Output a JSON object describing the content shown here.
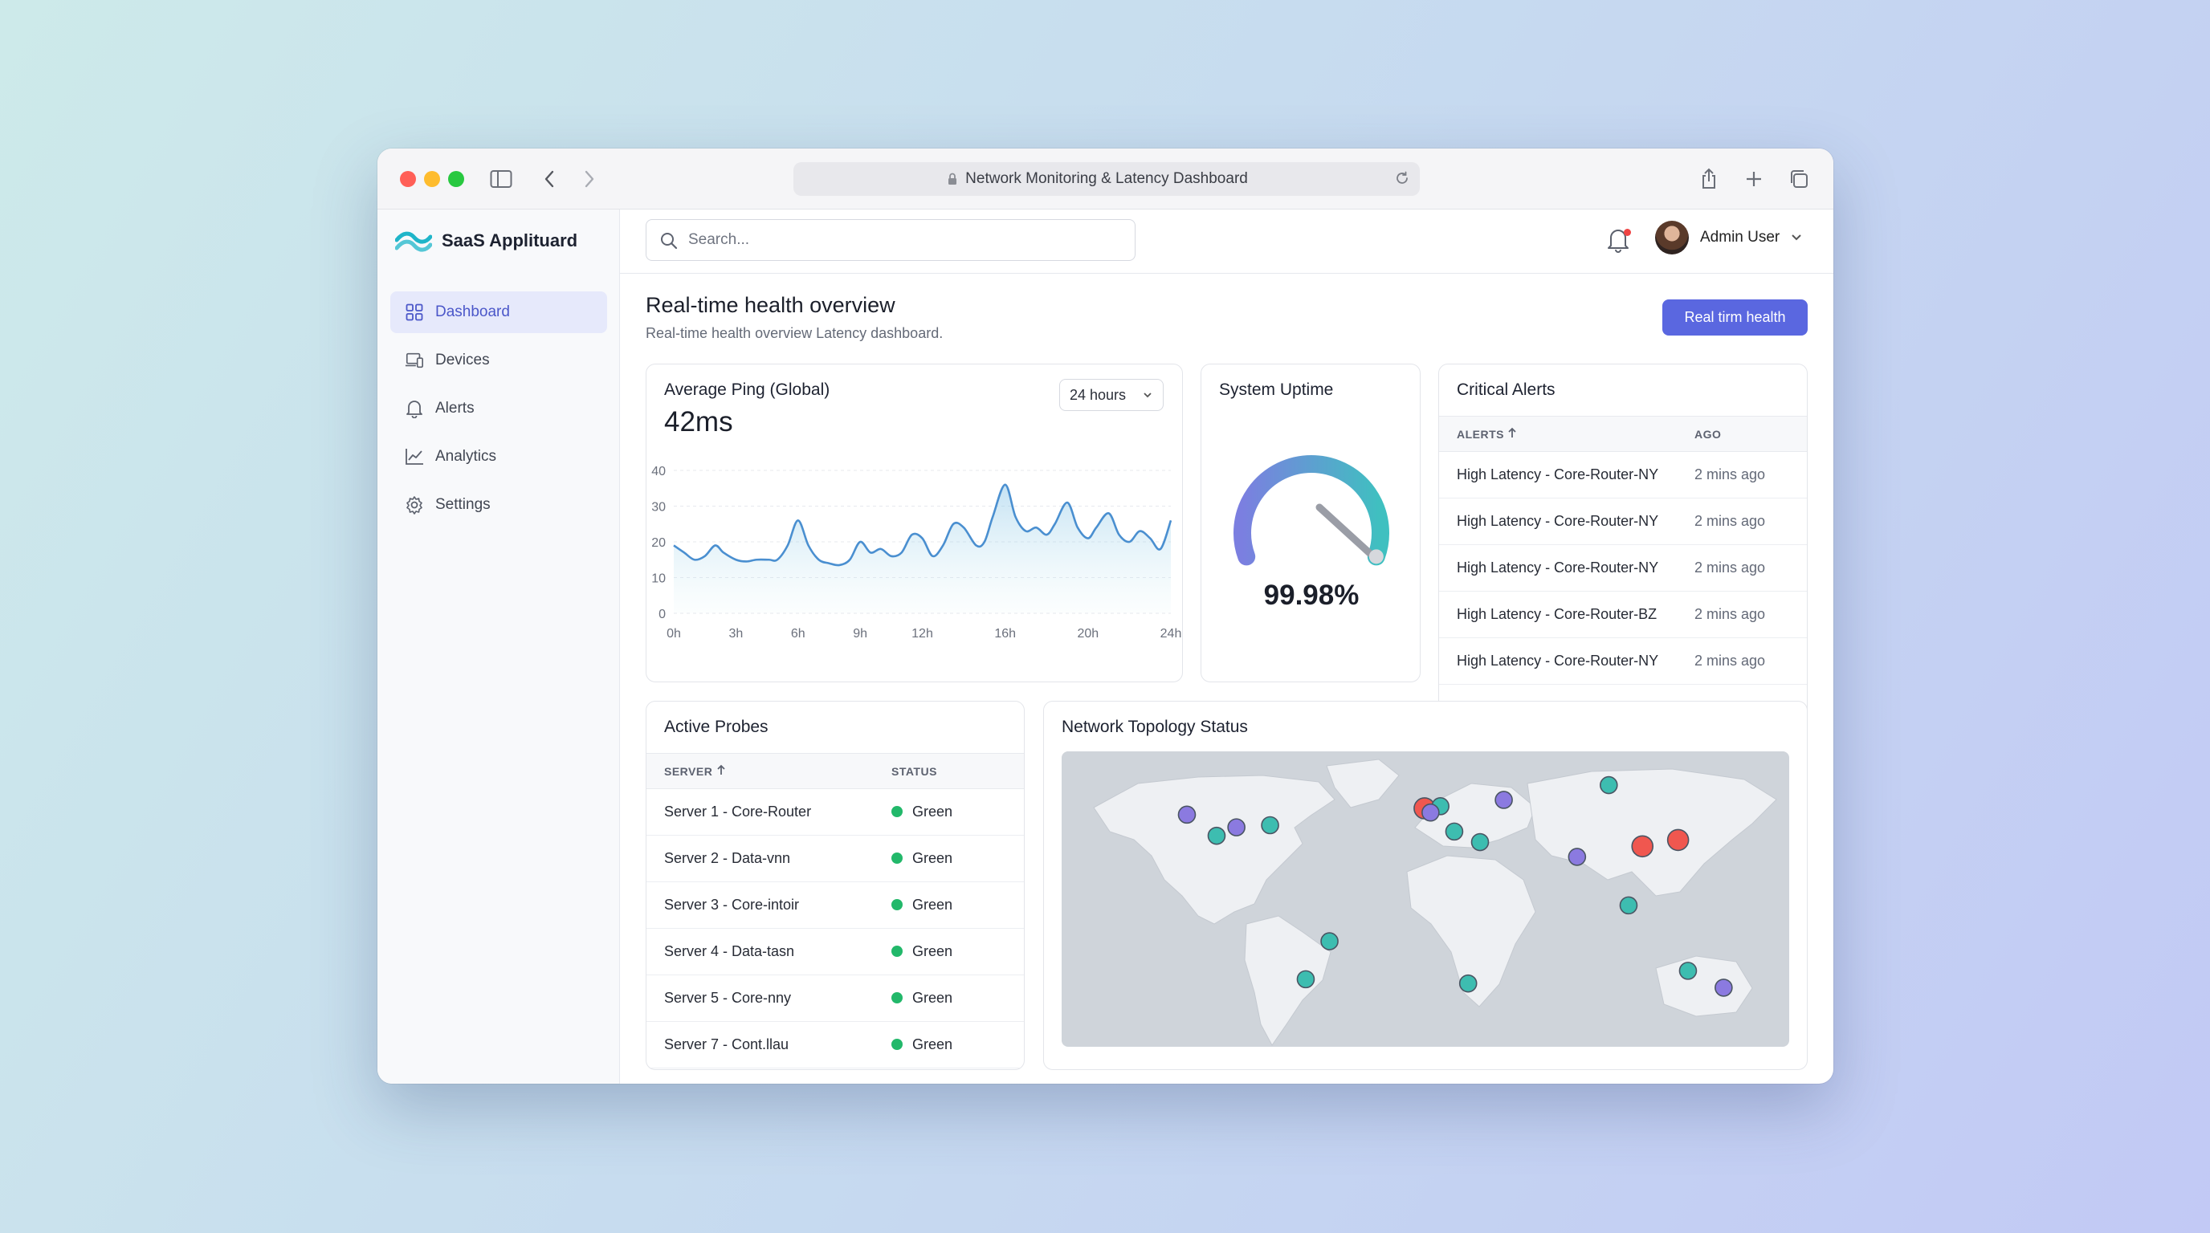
{
  "browser": {
    "url_text": "Network Monitoring & Latency Dashboard"
  },
  "sidebar": {
    "brand": "SaaS Applituard",
    "items": [
      {
        "label": "Dashboard",
        "icon": "grid-icon",
        "active": true
      },
      {
        "label": "Devices",
        "icon": "devices-icon",
        "active": false
      },
      {
        "label": "Alerts",
        "icon": "bell-icon",
        "active": false
      },
      {
        "label": "Analytics",
        "icon": "line-chart-icon",
        "active": false
      },
      {
        "label": "Settings",
        "icon": "gear-icon",
        "active": false
      }
    ]
  },
  "header": {
    "search_placeholder": "Search...",
    "user_name": "Admin User",
    "notification_color": "#ef4444"
  },
  "main": {
    "title": "Real-time health overview",
    "subtitle": "Real-time health overview Latency dashboard.",
    "primary_button": "Real tirm health",
    "accent_color": "#5a67e0"
  },
  "ping": {
    "title": "Average Ping (Global)",
    "value": "42ms",
    "range": "24 hours"
  },
  "chart_data": {
    "type": "area",
    "title": "",
    "xlabel": "",
    "ylabel": "",
    "x_ticks": [
      "0h",
      "3h",
      "6h",
      "9h",
      "12h",
      "16h",
      "20h",
      "24h"
    ],
    "y_ticks": [
      "0",
      "10",
      "20",
      "30",
      "40"
    ],
    "ylim": [
      0,
      40
    ],
    "xlim": [
      0,
      24
    ],
    "grid": true,
    "series": [
      {
        "color": "#4a8fd0",
        "x": [
          0,
          0.5,
          1,
          1.5,
          2,
          2.4,
          3,
          3.5,
          4,
          4.6,
          5,
          5.5,
          6,
          6.5,
          7,
          7.5,
          8,
          8.5,
          9,
          9.5,
          10,
          10.5,
          11,
          11.5,
          12,
          12.5,
          13,
          13.5,
          14,
          14.6,
          15,
          15.4,
          16,
          16.5,
          17,
          17.5,
          18,
          18.4,
          19,
          19.5,
          20,
          20.4,
          21,
          21.5,
          22,
          22.5,
          23,
          23.5,
          24
        ],
        "y": [
          19,
          17,
          15,
          16,
          19,
          17,
          15,
          14.5,
          15,
          15,
          15,
          19,
          26,
          19,
          15,
          14,
          13.5,
          15,
          20,
          17,
          18,
          16,
          17,
          22,
          21,
          16,
          19,
          25,
          24,
          19,
          20,
          27,
          36,
          27,
          23,
          24,
          22,
          25,
          31,
          24,
          21,
          24,
          28,
          22,
          20,
          23,
          21,
          18,
          26
        ]
      }
    ]
  },
  "uptime": {
    "title": "System Uptime",
    "value": "99.98%",
    "fraction": 0.9998,
    "gauge_colors": [
      "#7b7fe0",
      "#3fc0c0"
    ]
  },
  "alerts": {
    "title": "Critical Alerts",
    "col_alerts": "ALERTS",
    "col_ago": "AGO",
    "rows": [
      {
        "alert": "High Latency - Core-Router-NY",
        "ago": "2 mins ago"
      },
      {
        "alert": "High Latency - Core-Router-NY",
        "ago": "2 mins ago"
      },
      {
        "alert": "High Latency - Core-Router-NY",
        "ago": "2 mins ago"
      },
      {
        "alert": "High Latency - Core-Router-BZ",
        "ago": "2 mins ago"
      },
      {
        "alert": "High Latency - Core-Router-NY",
        "ago": "2 mins ago"
      }
    ]
  },
  "probes": {
    "title": "Active Probes",
    "col_server": "SERVER",
    "col_status": "STATUS",
    "status_color": "#22b86a",
    "rows": [
      {
        "server": "Server 1 - Core-Router",
        "status": "Green"
      },
      {
        "server": "Server 2 - Data-vnn",
        "status": "Green"
      },
      {
        "server": "Server 3 - Core-intoir",
        "status": "Green"
      },
      {
        "server": "Server 4 - Data-tasn",
        "status": "Green"
      },
      {
        "server": "Server 5 - Core-nny",
        "status": "Green"
      },
      {
        "server": "Server 7 - Cont.llau",
        "status": "Green"
      }
    ]
  },
  "topology": {
    "title": "Network Topology Status",
    "colors": {
      "healthy": "#3dbdb0",
      "warning": "#8b7ae0",
      "critical": "#f0574f"
    },
    "nodes": [
      {
        "lat": 48,
        "lon": -120,
        "status": "warning"
      },
      {
        "lat": 38,
        "lon": -105,
        "status": "healthy"
      },
      {
        "lat": 42,
        "lon": -95,
        "status": "warning"
      },
      {
        "lat": 43,
        "lon": -78,
        "status": "healthy"
      },
      {
        "lat": -12,
        "lon": -48,
        "status": "healthy"
      },
      {
        "lat": -30,
        "lon": -60,
        "status": "healthy"
      },
      {
        "lat": 51,
        "lon": 0,
        "status": "critical"
      },
      {
        "lat": 52,
        "lon": 8,
        "status": "healthy"
      },
      {
        "lat": 49,
        "lon": 3,
        "status": "warning"
      },
      {
        "lat": 55,
        "lon": 40,
        "status": "warning"
      },
      {
        "lat": 62,
        "lon": 93,
        "status": "healthy"
      },
      {
        "lat": 40,
        "lon": 15,
        "status": "healthy"
      },
      {
        "lat": 35,
        "lon": 28,
        "status": "healthy"
      },
      {
        "lat": 28,
        "lon": 77,
        "status": "warning"
      },
      {
        "lat": 33,
        "lon": 110,
        "status": "critical"
      },
      {
        "lat": 36,
        "lon": 128,
        "status": "critical"
      },
      {
        "lat": 5,
        "lon": 103,
        "status": "healthy"
      },
      {
        "lat": -32,
        "lon": 22,
        "status": "healthy"
      },
      {
        "lat": -26,
        "lon": 133,
        "status": "healthy"
      },
      {
        "lat": -34,
        "lon": 151,
        "status": "warning"
      }
    ]
  }
}
